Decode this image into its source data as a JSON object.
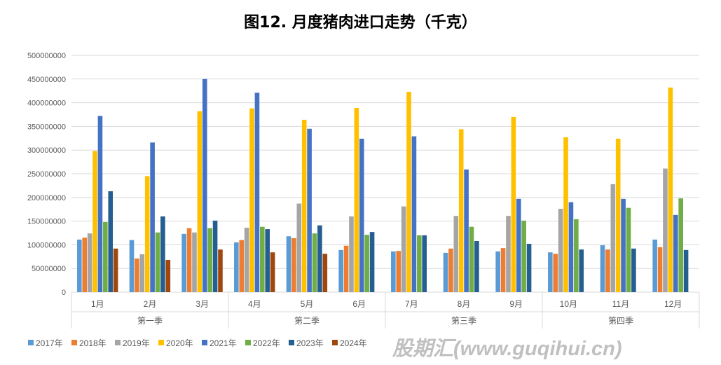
{
  "chart_data": {
    "type": "bar",
    "title": "图12. 月度猪肉进口走势（千克）",
    "xlabel": "",
    "ylabel": "",
    "ylim": [
      0,
      500000000
    ],
    "yticks": [
      "0",
      "50000000",
      "100000000",
      "150000000",
      "200000000",
      "250000000",
      "300000000",
      "350000000",
      "400000000",
      "450000000",
      "500000000"
    ],
    "grid": true,
    "legend_position": "bottom",
    "categories": [
      "1月",
      "2月",
      "3月",
      "4月",
      "5月",
      "6月",
      "7月",
      "8月",
      "9月",
      "10月",
      "11月",
      "12月"
    ],
    "groups": [
      {
        "label": "第一季",
        "span": 3
      },
      {
        "label": "第二季",
        "span": 3
      },
      {
        "label": "第三季",
        "span": 3
      },
      {
        "label": "第四季",
        "span": 3
      }
    ],
    "series": [
      {
        "name": "2017年",
        "color": "#5B9BD5",
        "values": [
          111000000,
          110000000,
          123000000,
          105000000,
          118000000,
          89000000,
          86000000,
          83000000,
          86000000,
          84000000,
          99000000,
          111000000
        ]
      },
      {
        "name": "2018年",
        "color": "#ED7D31",
        "values": [
          115000000,
          71000000,
          135000000,
          110000000,
          114000000,
          98000000,
          87000000,
          92000000,
          93000000,
          81000000,
          90000000,
          95000000
        ]
      },
      {
        "name": "2019年",
        "color": "#A5A5A5",
        "values": [
          124000000,
          80000000,
          126000000,
          136000000,
          187000000,
          160000000,
          181000000,
          161000000,
          161000000,
          176000000,
          228000000,
          261000000
        ]
      },
      {
        "name": "2020年",
        "color": "#FFC000",
        "values": [
          298000000,
          245000000,
          382000000,
          388000000,
          364000000,
          389000000,
          423000000,
          344000000,
          370000000,
          327000000,
          324000000,
          432000000
        ]
      },
      {
        "name": "2021年",
        "color": "#4472C4",
        "values": [
          372000000,
          316000000,
          450000000,
          421000000,
          345000000,
          324000000,
          329000000,
          259000000,
          197000000,
          190000000,
          197000000,
          163000000
        ]
      },
      {
        "name": "2022年",
        "color": "#70AD47",
        "values": [
          148000000,
          126000000,
          135000000,
          138000000,
          124000000,
          121000000,
          120000000,
          138000000,
          151000000,
          154000000,
          178000000,
          198000000
        ]
      },
      {
        "name": "2023年",
        "color": "#255E91",
        "values": [
          213000000,
          160000000,
          151000000,
          133000000,
          141000000,
          127000000,
          120000000,
          108000000,
          102000000,
          90000000,
          92000000,
          89000000
        ]
      },
      {
        "name": "2024年",
        "color": "#9E480E",
        "values": [
          92000000,
          68000000,
          90000000,
          84000000,
          81000000,
          null,
          null,
          null,
          null,
          null,
          null,
          null
        ]
      }
    ]
  },
  "watermark": "股期汇(www.guqihui.cn)"
}
